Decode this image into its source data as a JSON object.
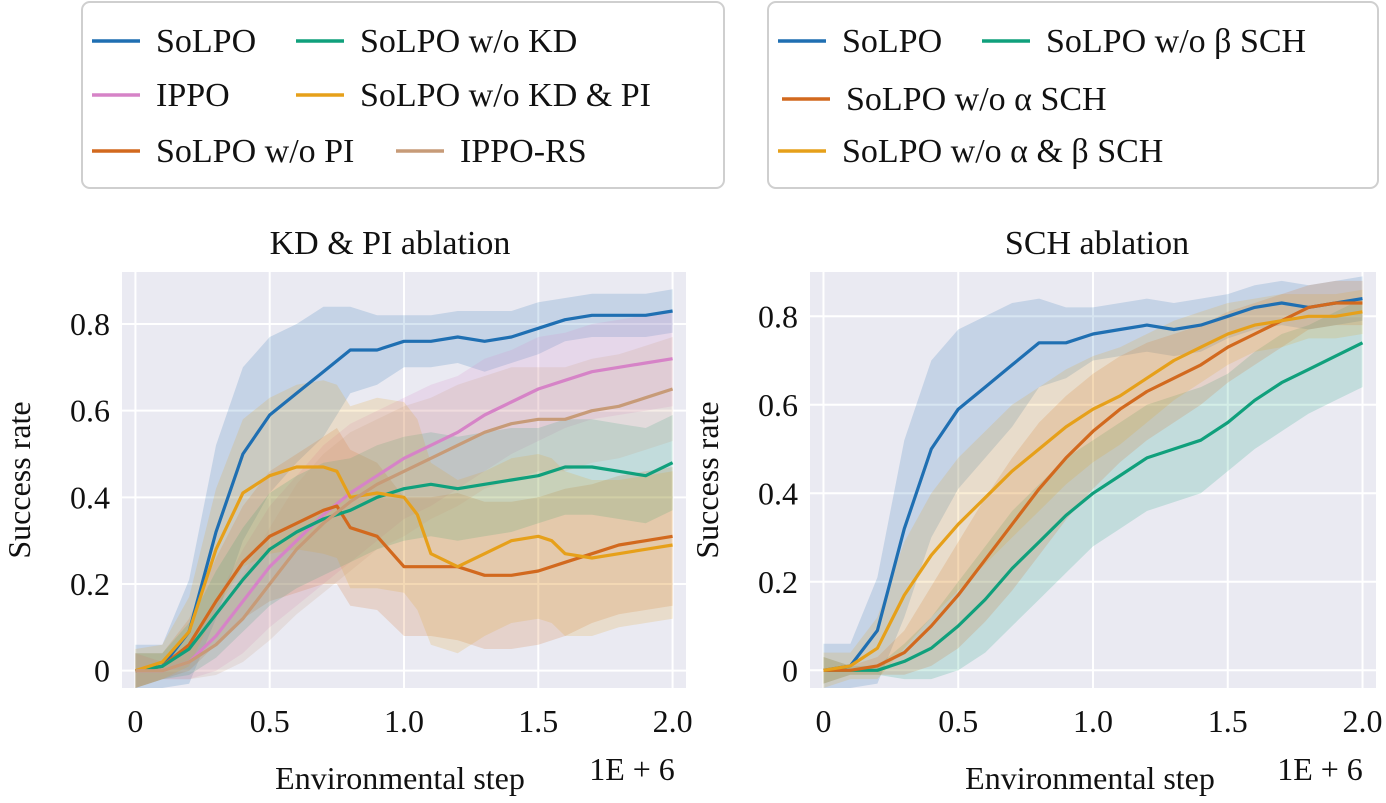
{
  "colors": {
    "plot_bg": "#eaeaf2",
    "grid": "#ffffff",
    "solpo": "#1f6fb2",
    "ippo": "#d683c7",
    "wo_pi": "#d2691e",
    "wo_kd": "#10a07c",
    "wo_kd_pi": "#e6a01a",
    "ippo_rs": "#c79b78"
  },
  "chart_data": [
    {
      "type": "line",
      "title": "KD & PI ablation",
      "xlabel": "Environmental step",
      "x_multiplier": "1E + 6",
      "ylabel": "Success rate",
      "xlim": [
        -0.05,
        2.05
      ],
      "ylim": [
        -0.04,
        0.92
      ],
      "xticks": [
        0,
        0.5,
        1.0,
        1.5,
        2.0
      ],
      "xtick_labels": [
        "0",
        "0.5",
        "1.0",
        "1.5",
        "2.0"
      ],
      "yticks": [
        0,
        0.2,
        0.4,
        0.6,
        0.8
      ],
      "ytick_labels": [
        "0",
        "0.2",
        "0.4",
        "0.6",
        "0.8"
      ],
      "grid": true,
      "legend_position": "above-plot",
      "legend_columns": 2,
      "legend_entries": [
        "SoLPO",
        "SoLPO w/o KD",
        "IPPO",
        "SoLPO w/o KD & PI",
        "SoLPO w/o  PI",
        "IPPO-RS"
      ],
      "series": [
        {
          "name": "SoLPO",
          "color_key": "solpo",
          "x": [
            0,
            0.1,
            0.2,
            0.3,
            0.4,
            0.5,
            0.6,
            0.7,
            0.8,
            0.9,
            1.0,
            1.1,
            1.2,
            1.3,
            1.4,
            1.5,
            1.6,
            1.7,
            1.8,
            1.9,
            2.0
          ],
          "y": [
            0,
            0.01,
            0.09,
            0.32,
            0.5,
            0.59,
            0.64,
            0.69,
            0.74,
            0.74,
            0.76,
            0.76,
            0.77,
            0.76,
            0.77,
            0.79,
            0.81,
            0.82,
            0.82,
            0.82,
            0.83
          ],
          "band": [
            0.06,
            0.05,
            0.12,
            0.2,
            0.2,
            0.18,
            0.16,
            0.15,
            0.1,
            0.08,
            0.06,
            0.06,
            0.06,
            0.07,
            0.06,
            0.06,
            0.05,
            0.05,
            0.05,
            0.05,
            0.05
          ]
        },
        {
          "name": "IPPO",
          "color_key": "ippo",
          "x": [
            0,
            0.1,
            0.2,
            0.3,
            0.4,
            0.5,
            0.6,
            0.7,
            0.8,
            0.9,
            1.0,
            1.1,
            1.2,
            1.3,
            1.4,
            1.5,
            1.6,
            1.7,
            1.8,
            1.9,
            2.0
          ],
          "y": [
            0,
            0.0,
            0.02,
            0.08,
            0.16,
            0.24,
            0.3,
            0.36,
            0.41,
            0.45,
            0.49,
            0.52,
            0.55,
            0.59,
            0.62,
            0.65,
            0.67,
            0.69,
            0.7,
            0.71,
            0.72
          ],
          "band": [
            0.04,
            0.02,
            0.04,
            0.08,
            0.12,
            0.14,
            0.15,
            0.16,
            0.16,
            0.15,
            0.14,
            0.14,
            0.13,
            0.13,
            0.12,
            0.12,
            0.11,
            0.11,
            0.11,
            0.11,
            0.11
          ]
        },
        {
          "name": "SoLPO w/o  PI",
          "color_key": "wo_pi",
          "x": [
            0,
            0.1,
            0.2,
            0.3,
            0.4,
            0.5,
            0.6,
            0.7,
            0.75,
            0.8,
            0.9,
            1.0,
            1.1,
            1.2,
            1.3,
            1.4,
            1.5,
            1.6,
            1.7,
            1.8,
            1.9,
            2.0
          ],
          "y": [
            0,
            0.01,
            0.06,
            0.16,
            0.25,
            0.31,
            0.34,
            0.37,
            0.38,
            0.33,
            0.31,
            0.24,
            0.24,
            0.24,
            0.22,
            0.22,
            0.23,
            0.25,
            0.27,
            0.29,
            0.3,
            0.31
          ],
          "band": [
            0.04,
            0.03,
            0.06,
            0.1,
            0.13,
            0.15,
            0.16,
            0.17,
            0.18,
            0.18,
            0.17,
            0.16,
            0.16,
            0.17,
            0.17,
            0.17,
            0.17,
            0.17,
            0.16,
            0.16,
            0.16,
            0.16
          ]
        },
        {
          "name": "SoLPO w/o KD",
          "color_key": "wo_kd",
          "x": [
            0,
            0.1,
            0.2,
            0.3,
            0.4,
            0.5,
            0.6,
            0.7,
            0.8,
            0.9,
            1.0,
            1.1,
            1.2,
            1.3,
            1.4,
            1.5,
            1.6,
            1.7,
            1.8,
            1.9,
            2.0
          ],
          "y": [
            0,
            0.01,
            0.05,
            0.13,
            0.21,
            0.28,
            0.32,
            0.35,
            0.37,
            0.4,
            0.42,
            0.43,
            0.42,
            0.43,
            0.44,
            0.45,
            0.47,
            0.47,
            0.46,
            0.45,
            0.48
          ],
          "band": [
            0.04,
            0.03,
            0.06,
            0.1,
            0.12,
            0.13,
            0.13,
            0.13,
            0.12,
            0.12,
            0.12,
            0.12,
            0.12,
            0.12,
            0.12,
            0.11,
            0.11,
            0.11,
            0.11,
            0.11,
            0.11
          ]
        },
        {
          "name": "SoLPO w/o KD & PI",
          "color_key": "wo_kd_pi",
          "x": [
            0,
            0.1,
            0.2,
            0.3,
            0.4,
            0.5,
            0.6,
            0.7,
            0.75,
            0.8,
            0.9,
            1.0,
            1.05,
            1.1,
            1.2,
            1.3,
            1.4,
            1.5,
            1.55,
            1.6,
            1.7,
            1.8,
            1.9,
            2.0
          ],
          "y": [
            0,
            0.02,
            0.09,
            0.28,
            0.41,
            0.45,
            0.47,
            0.47,
            0.46,
            0.4,
            0.41,
            0.4,
            0.36,
            0.27,
            0.24,
            0.27,
            0.3,
            0.31,
            0.3,
            0.27,
            0.26,
            0.27,
            0.28,
            0.29
          ],
          "band": [
            0.05,
            0.04,
            0.08,
            0.14,
            0.17,
            0.18,
            0.19,
            0.2,
            0.2,
            0.21,
            0.22,
            0.22,
            0.22,
            0.21,
            0.2,
            0.19,
            0.19,
            0.19,
            0.19,
            0.19,
            0.18,
            0.17,
            0.17,
            0.17
          ]
        },
        {
          "name": "IPPO-RS",
          "color_key": "ippo_rs",
          "x": [
            0,
            0.1,
            0.2,
            0.3,
            0.4,
            0.5,
            0.6,
            0.7,
            0.8,
            0.9,
            1.0,
            1.1,
            1.2,
            1.3,
            1.4,
            1.5,
            1.6,
            1.7,
            1.8,
            1.9,
            2.0
          ],
          "y": [
            0,
            0.0,
            0.02,
            0.06,
            0.12,
            0.2,
            0.28,
            0.34,
            0.39,
            0.43,
            0.46,
            0.49,
            0.52,
            0.55,
            0.57,
            0.58,
            0.58,
            0.6,
            0.61,
            0.63,
            0.65
          ],
          "band": [
            0.04,
            0.02,
            0.04,
            0.07,
            0.1,
            0.13,
            0.15,
            0.16,
            0.16,
            0.15,
            0.15,
            0.14,
            0.14,
            0.13,
            0.13,
            0.12,
            0.12,
            0.12,
            0.12,
            0.12,
            0.12
          ]
        }
      ]
    },
    {
      "type": "line",
      "title": "SCH ablation",
      "xlabel": "Environmental step",
      "x_multiplier": "1E + 6",
      "ylabel": "Success rate",
      "xlim": [
        -0.05,
        2.05
      ],
      "ylim": [
        -0.04,
        0.9
      ],
      "xticks": [
        0,
        0.5,
        1.0,
        1.5,
        2.0
      ],
      "xtick_labels": [
        "0",
        "0.5",
        "1.0",
        "1.5",
        "2.0"
      ],
      "yticks": [
        0,
        0.2,
        0.4,
        0.6,
        0.8
      ],
      "ytick_labels": [
        "0",
        "0.2",
        "0.4",
        "0.6",
        "0.8"
      ],
      "grid": true,
      "legend_position": "above-plot",
      "legend_columns": 2,
      "legend_entries": [
        "SoLPO",
        "SoLPO w/o β SCH",
        "SoLPO w/o α SCH",
        "SoLPO w/o α & β SCH"
      ],
      "series": [
        {
          "name": "SoLPO",
          "color_key": "solpo",
          "x": [
            0,
            0.1,
            0.2,
            0.3,
            0.4,
            0.5,
            0.6,
            0.7,
            0.8,
            0.9,
            1.0,
            1.1,
            1.2,
            1.3,
            1.4,
            1.5,
            1.6,
            1.7,
            1.8,
            1.9,
            2.0
          ],
          "y": [
            0,
            0.01,
            0.09,
            0.32,
            0.5,
            0.59,
            0.64,
            0.69,
            0.74,
            0.74,
            0.76,
            0.77,
            0.78,
            0.77,
            0.78,
            0.8,
            0.82,
            0.83,
            0.82,
            0.83,
            0.84
          ],
          "band": [
            0.06,
            0.05,
            0.12,
            0.2,
            0.2,
            0.18,
            0.16,
            0.14,
            0.1,
            0.08,
            0.06,
            0.06,
            0.06,
            0.06,
            0.06,
            0.05,
            0.05,
            0.05,
            0.05,
            0.05,
            0.05
          ]
        },
        {
          "name": "SoLPO w/o β SCH",
          "color_key": "wo_kd",
          "x": [
            0,
            0.1,
            0.2,
            0.3,
            0.4,
            0.5,
            0.6,
            0.7,
            0.8,
            0.9,
            1.0,
            1.1,
            1.2,
            1.3,
            1.4,
            1.5,
            1.6,
            1.7,
            1.8,
            1.9,
            2.0
          ],
          "y": [
            0,
            0.0,
            0.0,
            0.02,
            0.05,
            0.1,
            0.16,
            0.23,
            0.29,
            0.35,
            0.4,
            0.44,
            0.48,
            0.5,
            0.52,
            0.56,
            0.61,
            0.65,
            0.68,
            0.71,
            0.74
          ],
          "band": [
            0.03,
            0.01,
            0.01,
            0.04,
            0.07,
            0.1,
            0.12,
            0.13,
            0.13,
            0.13,
            0.12,
            0.12,
            0.12,
            0.12,
            0.12,
            0.11,
            0.11,
            0.11,
            0.1,
            0.1,
            0.1
          ]
        },
        {
          "name": "SoLPO w/o α SCH",
          "color_key": "wo_pi",
          "x": [
            0,
            0.1,
            0.2,
            0.3,
            0.4,
            0.5,
            0.6,
            0.7,
            0.8,
            0.9,
            1.0,
            1.1,
            1.2,
            1.3,
            1.4,
            1.5,
            1.6,
            1.7,
            1.8,
            1.9,
            2.0
          ],
          "y": [
            0,
            0.0,
            0.01,
            0.04,
            0.1,
            0.17,
            0.25,
            0.33,
            0.41,
            0.48,
            0.54,
            0.59,
            0.63,
            0.66,
            0.69,
            0.73,
            0.76,
            0.79,
            0.82,
            0.83,
            0.83
          ],
          "band": [
            0.03,
            0.01,
            0.02,
            0.05,
            0.09,
            0.12,
            0.14,
            0.15,
            0.15,
            0.14,
            0.13,
            0.12,
            0.11,
            0.1,
            0.09,
            0.08,
            0.07,
            0.06,
            0.05,
            0.05,
            0.05
          ]
        },
        {
          "name": "SoLPO w/o α & β SCH",
          "color_key": "wo_kd_pi",
          "x": [
            0,
            0.1,
            0.2,
            0.3,
            0.4,
            0.5,
            0.6,
            0.7,
            0.8,
            0.9,
            1.0,
            1.1,
            1.2,
            1.3,
            1.4,
            1.5,
            1.6,
            1.7,
            1.8,
            1.9,
            2.0
          ],
          "y": [
            0,
            0.01,
            0.05,
            0.17,
            0.26,
            0.33,
            0.39,
            0.45,
            0.5,
            0.55,
            0.59,
            0.62,
            0.66,
            0.7,
            0.73,
            0.76,
            0.78,
            0.79,
            0.8,
            0.8,
            0.81
          ],
          "band": [
            0.04,
            0.03,
            0.07,
            0.12,
            0.14,
            0.15,
            0.15,
            0.15,
            0.14,
            0.13,
            0.12,
            0.11,
            0.1,
            0.09,
            0.08,
            0.07,
            0.06,
            0.06,
            0.05,
            0.05,
            0.05
          ]
        }
      ]
    }
  ]
}
